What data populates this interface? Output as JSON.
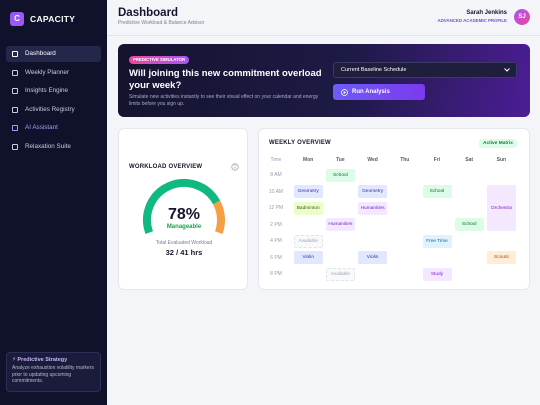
{
  "brand": {
    "logo": "C",
    "name": "CAPACITY"
  },
  "nav": [
    "Dashboard",
    "Weekly Planner",
    "Insights Engine",
    "Activities Registry",
    "AI Assistant",
    "Relaxation Suite"
  ],
  "strategy": {
    "title": "⚡ Predictive Strategy",
    "text": "Analyze exhaustion volatility markers prior to updating upcoming commitments."
  },
  "header": {
    "title": "Dashboard",
    "subtitle": "Predictive Workload & Balance Advisor",
    "user": "Sarah Jenkins",
    "role": "ADVANCED ACADEMIC PROFILE",
    "avatar": "SJ"
  },
  "simulator": {
    "badge": "PREDICTIVE SIMULATOR",
    "title": "Will joining this new commitment overload your week?",
    "text": "Simulate new activities instantly to see their visual effect on your calendar and energy limits before you sign up.",
    "select": "Current Baseline Schedule",
    "button": "Run Analysis"
  },
  "workload": {
    "title": "WORKLOAD OVERVIEW",
    "percent": {
      "value": 78,
      "label": "78%"
    },
    "status": "Manageable",
    "caption": "Total Evaluated Workload",
    "hours": "32 / 41 hrs"
  },
  "weekly": {
    "title": "WEEKLY OVERVIEW",
    "badge": "Active Matrix",
    "columns": [
      "Time",
      "Mon",
      "Tue",
      "Wed",
      "Thu",
      "Fri",
      "Sat",
      "Sun"
    ],
    "rows": [
      {
        "time": "8 AM",
        "cells": [
          null,
          {
            "label": "School",
            "tone": "green"
          },
          null,
          null,
          null,
          null,
          null
        ]
      },
      {
        "time": "10 AM",
        "cells": [
          {
            "label": "Geometry",
            "tone": "blue"
          },
          null,
          {
            "label": "Geometry",
            "tone": "blue"
          },
          null,
          {
            "label": "School",
            "tone": "green"
          },
          null,
          {
            "label": "Orchestra",
            "tone": "purple",
            "span": 3
          }
        ]
      },
      {
        "time": "12 PM",
        "cells": [
          {
            "label": "Badminton",
            "tone": "lime"
          },
          null,
          {
            "label": "Humanities",
            "tone": "purple"
          },
          null,
          null,
          null,
          null
        ]
      },
      {
        "time": "2 PM",
        "cells": [
          null,
          {
            "label": "Humanities",
            "tone": "purple"
          },
          null,
          null,
          null,
          {
            "label": "School",
            "tone": "green"
          },
          null
        ]
      },
      {
        "time": "4 PM",
        "cells": [
          {
            "label": "Available",
            "tone": "ghost"
          },
          null,
          null,
          null,
          {
            "label": "Free Time",
            "tone": "free"
          },
          null,
          null
        ]
      },
      {
        "time": "6 PM",
        "cells": [
          {
            "label": "Violin",
            "tone": "blue"
          },
          null,
          {
            "label": "Violin",
            "tone": "blue"
          },
          null,
          null,
          null,
          {
            "label": "Scouts",
            "tone": "orange"
          }
        ]
      },
      {
        "time": "8 PM",
        "cells": [
          null,
          {
            "label": "Available",
            "tone": "ghost"
          },
          null,
          null,
          {
            "label": "Study",
            "tone": "purple"
          },
          null,
          null
        ]
      }
    ]
  }
}
